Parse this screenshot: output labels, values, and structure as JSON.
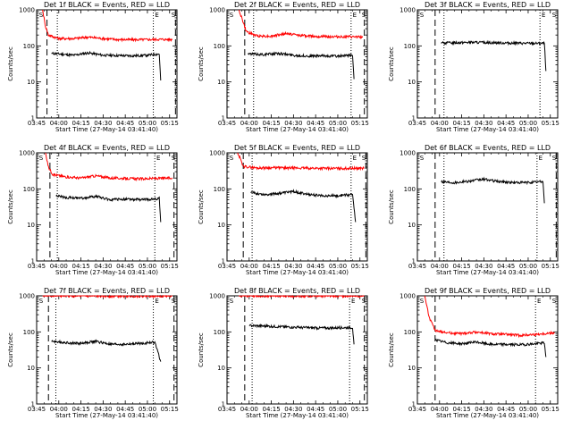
{
  "figure": {
    "xlabel": "Start Time (27-May-14 03:41:40)",
    "ylabel": "Counts/sec",
    "x_tick_labels": [
      "03:45",
      "04:00",
      "04:15",
      "04:30",
      "04:45",
      "05:00",
      "05:15"
    ],
    "y_tick_labels": [
      "1",
      "10",
      "100",
      "1000"
    ],
    "corner_markers": [
      "S",
      "E",
      "S"
    ],
    "colors": {
      "events": "#000000",
      "lld": "#ff0000",
      "background": "#ffffff"
    }
  },
  "chart_data": [
    {
      "type": "line",
      "title": "Det 1f BLACK = Events, RED = LLD",
      "x_range": [
        "03:45",
        "05:20"
      ],
      "y_range": [
        1,
        1000
      ],
      "y_scale": "log",
      "dashed_lines": [
        "03:52",
        "05:19"
      ],
      "dotted_lines": [
        "03:59",
        "05:04"
      ],
      "series": [
        {
          "name": "Events",
          "color": "#000000",
          "start": "03:55",
          "end": "05:09",
          "points": [
            [
              "03:55",
              62
            ],
            [
              "04:00",
              60
            ],
            [
              "04:10",
              55
            ],
            [
              "04:20",
              64
            ],
            [
              "04:30",
              55
            ],
            [
              "04:40",
              54
            ],
            [
              "04:50",
              53
            ],
            [
              "05:00",
              55
            ],
            [
              "05:08",
              60
            ],
            [
              "05:09",
              11
            ]
          ]
        },
        {
          "name": "LLD",
          "color": "#ff0000",
          "start": "03:49",
          "end": "05:17",
          "points": [
            [
              "03:49",
              1000
            ],
            [
              "03:51",
              350
            ],
            [
              "03:53",
              200
            ],
            [
              "04:00",
              160
            ],
            [
              "04:10",
              160
            ],
            [
              "04:20",
              175
            ],
            [
              "04:30",
              160
            ],
            [
              "04:40",
              150
            ],
            [
              "04:50",
              148
            ],
            [
              "05:00",
              150
            ],
            [
              "05:10",
              152
            ],
            [
              "05:17",
              150
            ]
          ]
        }
      ]
    },
    {
      "type": "line",
      "title": "Det 2f BLACK = Events, RED = LLD",
      "x_range": [
        "03:45",
        "05:20"
      ],
      "y_range": [
        1,
        1000
      ],
      "y_scale": "log",
      "dashed_lines": [
        "03:57",
        "05:18"
      ],
      "dotted_lines": [
        "04:03",
        "05:09"
      ],
      "series": [
        {
          "name": "Events",
          "color": "#000000",
          "start": "03:59",
          "end": "05:11",
          "points": [
            [
              "03:59",
              60
            ],
            [
              "04:10",
              58
            ],
            [
              "04:20",
              62
            ],
            [
              "04:30",
              55
            ],
            [
              "04:40",
              52
            ],
            [
              "04:50",
              53
            ],
            [
              "05:00",
              52
            ],
            [
              "05:10",
              55
            ],
            [
              "05:11",
              12
            ]
          ]
        },
        {
          "name": "LLD",
          "color": "#ff0000",
          "start": "03:53",
          "end": "05:17",
          "points": [
            [
              "03:53",
              1000
            ],
            [
              "03:55",
              600
            ],
            [
              "03:58",
              250
            ],
            [
              "04:05",
              190
            ],
            [
              "04:15",
              185
            ],
            [
              "04:25",
              220
            ],
            [
              "04:35",
              195
            ],
            [
              "04:45",
              185
            ],
            [
              "04:55",
              180
            ],
            [
              "05:05",
              178
            ],
            [
              "05:17",
              175
            ]
          ]
        }
      ]
    },
    {
      "type": "line",
      "title": "Det 3f BLACK = Events, RED = LLD",
      "x_range": [
        "03:45",
        "05:20"
      ],
      "y_range": [
        1,
        1000
      ],
      "y_scale": "log",
      "dashed_lines": [
        "03:57",
        "05:20"
      ],
      "dotted_lines": [
        "04:03",
        "05:08"
      ],
      "series": [
        {
          "name": "Events",
          "color": "#000000",
          "start": "04:01",
          "end": "05:12",
          "points": [
            [
              "04:01",
              120
            ],
            [
              "04:20",
              125
            ],
            [
              "04:40",
              122
            ],
            [
              "05:00",
              118
            ],
            [
              "05:11",
              118
            ],
            [
              "05:12",
              20
            ]
          ]
        }
      ]
    },
    {
      "type": "line",
      "title": "Det 4f BLACK = Events, RED = LLD",
      "x_range": [
        "03:45",
        "05:20"
      ],
      "y_range": [
        1,
        1000
      ],
      "y_scale": "log",
      "dashed_lines": [
        "03:54",
        "05:18"
      ],
      "dotted_lines": [
        "03:59",
        "05:05"
      ],
      "series": [
        {
          "name": "Events",
          "color": "#000000",
          "start": "03:58",
          "end": "05:09",
          "points": [
            [
              "03:58",
              65
            ],
            [
              "04:05",
              58
            ],
            [
              "04:15",
              55
            ],
            [
              "04:25",
              62
            ],
            [
              "04:35",
              50
            ],
            [
              "04:45",
              52
            ],
            [
              "04:55",
              50
            ],
            [
              "05:05",
              52
            ],
            [
              "05:08",
              55
            ],
            [
              "05:09",
              12
            ]
          ]
        },
        {
          "name": "LLD",
          "color": "#ff0000",
          "start": "03:51",
          "end": "05:17",
          "points": [
            [
              "03:51",
              1000
            ],
            [
              "03:53",
              400
            ],
            [
              "03:56",
              250
            ],
            [
              "04:05",
              215
            ],
            [
              "04:15",
              200
            ],
            [
              "04:25",
              230
            ],
            [
              "04:35",
              200
            ],
            [
              "04:45",
              195
            ],
            [
              "04:55",
              190
            ],
            [
              "05:05",
              195
            ],
            [
              "05:17",
              200
            ]
          ]
        }
      ]
    },
    {
      "type": "line",
      "title": "Det 5f BLACK = Events, RED = LLD",
      "x_range": [
        "03:45",
        "05:20"
      ],
      "y_range": [
        1,
        1000
      ],
      "y_scale": "log",
      "dashed_lines": [
        "03:56",
        "05:19"
      ],
      "dotted_lines": [
        "04:02",
        "05:09"
      ],
      "series": [
        {
          "name": "Events",
          "color": "#000000",
          "start": "04:01",
          "end": "05:12",
          "points": [
            [
              "04:01",
              80
            ],
            [
              "04:10",
              70
            ],
            [
              "04:20",
              75
            ],
            [
              "04:30",
              85
            ],
            [
              "04:40",
              70
            ],
            [
              "04:50",
              65
            ],
            [
              "05:00",
              65
            ],
            [
              "05:10",
              70
            ],
            [
              "05:12",
              12
            ]
          ]
        },
        {
          "name": "LLD",
          "color": "#ff0000",
          "start": "03:52",
          "end": "05:18",
          "points": [
            [
              "03:52",
              1000
            ],
            [
              "03:54",
              700
            ],
            [
              "03:56",
              420
            ],
            [
              "04:05",
              380
            ],
            [
              "04:20",
              385
            ],
            [
              "04:40",
              375
            ],
            [
              "05:00",
              370
            ],
            [
              "05:18",
              375
            ]
          ]
        }
      ]
    },
    {
      "type": "line",
      "title": "Det 6f BLACK = Events, RED = LLD",
      "x_range": [
        "03:45",
        "05:20"
      ],
      "y_range": [
        1,
        1000
      ],
      "y_scale": "log",
      "dashed_lines": [
        "03:57",
        "05:19"
      ],
      "dotted_lines": [
        "04:03",
        "05:06"
      ],
      "series": [
        {
          "name": "Events",
          "color": "#000000",
          "start": "04:01",
          "end": "05:11",
          "points": [
            [
              "04:01",
              160
            ],
            [
              "04:10",
              150
            ],
            [
              "04:20",
              165
            ],
            [
              "04:30",
              185
            ],
            [
              "04:40",
              160
            ],
            [
              "04:50",
              150
            ],
            [
              "05:00",
              150
            ],
            [
              "05:10",
              160
            ],
            [
              "05:11",
              40
            ]
          ]
        }
      ]
    },
    {
      "type": "line",
      "title": "Det 7f BLACK = Events, RED = LLD",
      "x_range": [
        "03:45",
        "05:20"
      ],
      "y_range": [
        1,
        1000
      ],
      "y_scale": "log",
      "dashed_lines": [
        "03:53",
        "05:18"
      ],
      "dotted_lines": [
        "03:58",
        "05:04"
      ],
      "series": [
        {
          "name": "Events",
          "color": "#000000",
          "start": "03:55",
          "end": "05:09",
          "points": [
            [
              "03:55",
              55
            ],
            [
              "04:05",
              50
            ],
            [
              "04:15",
              48
            ],
            [
              "04:25",
              55
            ],
            [
              "04:35",
              45
            ],
            [
              "04:45",
              45
            ],
            [
              "04:55",
              48
            ],
            [
              "05:05",
              52
            ],
            [
              "05:09",
              15
            ]
          ]
        },
        {
          "name": "LLD",
          "color": "#ff0000",
          "start": "03:49",
          "end": "05:17",
          "points": [
            [
              "03:49",
              1000
            ],
            [
              "04:00",
              1000
            ],
            [
              "04:30",
              980
            ],
            [
              "05:00",
              990
            ],
            [
              "05:17",
              1000
            ]
          ]
        }
      ]
    },
    {
      "type": "line",
      "title": "Det 8f BLACK = Events, RED = LLD",
      "x_range": [
        "03:45",
        "05:20"
      ],
      "y_range": [
        1,
        1000
      ],
      "y_scale": "log",
      "dashed_lines": [
        "03:57",
        "05:18"
      ],
      "dotted_lines": [
        "04:02",
        "05:08"
      ],
      "series": [
        {
          "name": "Events",
          "color": "#000000",
          "start": "04:00",
          "end": "05:11",
          "points": [
            [
              "04:00",
              150
            ],
            [
              "04:10",
              145
            ],
            [
              "04:20",
              140
            ],
            [
              "04:30",
              135
            ],
            [
              "04:40",
              130
            ],
            [
              "04:50",
              128
            ],
            [
              "05:00",
              130
            ],
            [
              "05:10",
              132
            ],
            [
              "05:11",
              45
            ]
          ]
        },
        {
          "name": "LLD",
          "color": "#ff0000",
          "start": "03:53",
          "end": "05:18",
          "points": [
            [
              "03:53",
              1000
            ],
            [
              "04:10",
              1000
            ],
            [
              "04:40",
              990
            ],
            [
              "05:18",
              1000
            ]
          ]
        }
      ]
    },
    {
      "type": "line",
      "title": "Det 9f BLACK = Events, RED = LLD",
      "x_range": [
        "03:45",
        "05:20"
      ],
      "y_range": [
        1,
        1000
      ],
      "y_scale": "log",
      "dashed_lines": [
        "03:57",
        "05:20"
      ],
      "dotted_lines": [
        "05:05"
      ],
      "series": [
        {
          "name": "Events",
          "color": "#000000",
          "start": "03:57",
          "end": "05:12",
          "points": [
            [
              "03:57",
              60
            ],
            [
              "04:05",
              50
            ],
            [
              "04:15",
              47
            ],
            [
              "04:25",
              52
            ],
            [
              "04:35",
              45
            ],
            [
              "04:45",
              45
            ],
            [
              "04:55",
              44
            ],
            [
              "05:05",
              47
            ],
            [
              "05:11",
              50
            ],
            [
              "05:12",
              20
            ]
          ]
        },
        {
          "name": "LLD",
          "color": "#ff0000",
          "start": "03:50",
          "end": "05:18",
          "points": [
            [
              "03:50",
              1000
            ],
            [
              "03:53",
              250
            ],
            [
              "03:57",
              110
            ],
            [
              "04:05",
              95
            ],
            [
              "04:15",
              90
            ],
            [
              "04:25",
              100
            ],
            [
              "04:35",
              88
            ],
            [
              "04:45",
              85
            ],
            [
              "04:55",
              80
            ],
            [
              "05:05",
              85
            ],
            [
              "05:18",
              95
            ]
          ]
        }
      ]
    }
  ]
}
